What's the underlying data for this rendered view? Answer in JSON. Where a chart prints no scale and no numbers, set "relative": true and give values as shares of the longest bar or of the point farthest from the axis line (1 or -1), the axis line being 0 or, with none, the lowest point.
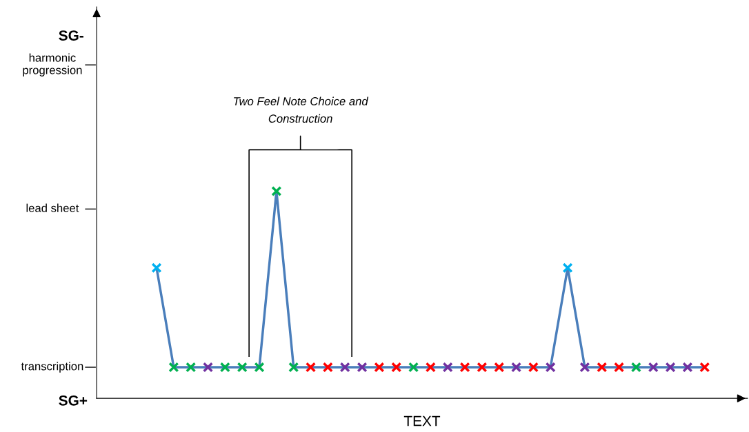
{
  "chart_data": {
    "type": "line",
    "xlabel": "TEXT",
    "categories": [
      null,
      null,
      null,
      null,
      null,
      null,
      null,
      null,
      null,
      null,
      null,
      null,
      null,
      null,
      null,
      null,
      null,
      null,
      null,
      null,
      null,
      null,
      null,
      null,
      null,
      null,
      null,
      null,
      null,
      null,
      null,
      null,
      null
    ],
    "series": [
      {
        "color": "#4a7ebb",
        "values": [
          0.63,
          0.15,
          0.15,
          0.15,
          0.15,
          0.15,
          0.15,
          1,
          0.15,
          0.15,
          0.15,
          0.15,
          0.15,
          0.15,
          0.15,
          0.15,
          0.15,
          0.15,
          0.15,
          0.15,
          0.15,
          0.15,
          0.15,
          0.15,
          0.63,
          0.15,
          0.15,
          0.15,
          0.15,
          0.15,
          0.15,
          0.15,
          0.15
        ],
        "colors": [
          "#00b0f0",
          "#00b050",
          "#00b050",
          "#7030a0",
          "#00b050",
          "#00b050",
          "#00b050",
          "#00b050",
          "#00b050",
          "#ff0000",
          "#ff0000",
          "#7030a0",
          "#7030a0",
          "#ff0000",
          "#ff0000",
          "#00b050",
          "#ff0000",
          "#7030a0",
          "#ff0000",
          "#ff0000",
          "#ff0000",
          "#7030a0",
          "#ff0000",
          "#7030a0",
          "#00b0f0",
          "#7030a0",
          "#ff0000",
          "#ff0000",
          "#00b050",
          "#7030a0",
          "#7030a0",
          "#7030a0",
          "#ff0000"
        ]
      }
    ],
    "marker": "cross",
    "relative": true,
    "annotations": [
      "Two Feel Note Choice and\nConstruction",
      "SG-",
      "SG+",
      "transcription",
      "lead sheet",
      "harmonic\nprogression"
    ]
  }
}
